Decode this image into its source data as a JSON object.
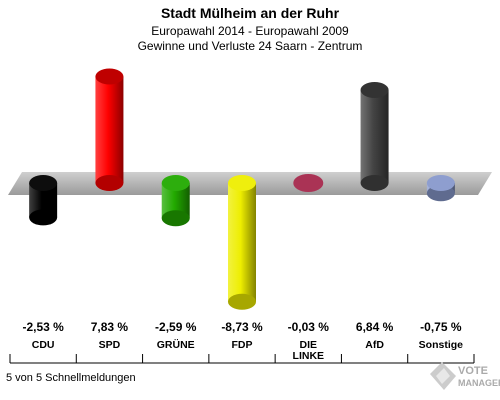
{
  "chart_data": {
    "type": "bar",
    "title": "Stadt Mülheim an der Ruhr",
    "subtitle_1": "Europawahl 2014 - Europawahl 2009",
    "subtitle_2": "Gewinne und Verluste 24 Saarn - Zentrum",
    "categories": [
      "CDU",
      "SPD",
      "GRÜNE",
      "FDP",
      "DIE LINKE",
      "AfD",
      "Sonstige"
    ],
    "category_lines": [
      [
        "CDU"
      ],
      [
        "SPD"
      ],
      [
        "GRÜNE"
      ],
      [
        "FDP"
      ],
      [
        "DIE",
        "LINKE"
      ],
      [
        "AfD"
      ],
      [
        "Sonstige"
      ]
    ],
    "values": [
      -2.53,
      7.83,
      -2.59,
      -8.73,
      -0.03,
      6.84,
      -0.75
    ],
    "value_labels": [
      "-2,53 %",
      "7,83 %",
      "-2,59 %",
      "-8,73 %",
      "-0,03 %",
      "6,84 %",
      "-0,75 %"
    ],
    "colors": [
      "#000000",
      "#ff0000",
      "#22aa00",
      "#eeee00",
      "#aa3355",
      "#444444",
      "#8899cc"
    ],
    "ylim": [
      -9,
      9
    ]
  },
  "footer": {
    "status": "5 von 5 Schnellmeldungen",
    "logo_text": "VOTE MANAGER"
  }
}
